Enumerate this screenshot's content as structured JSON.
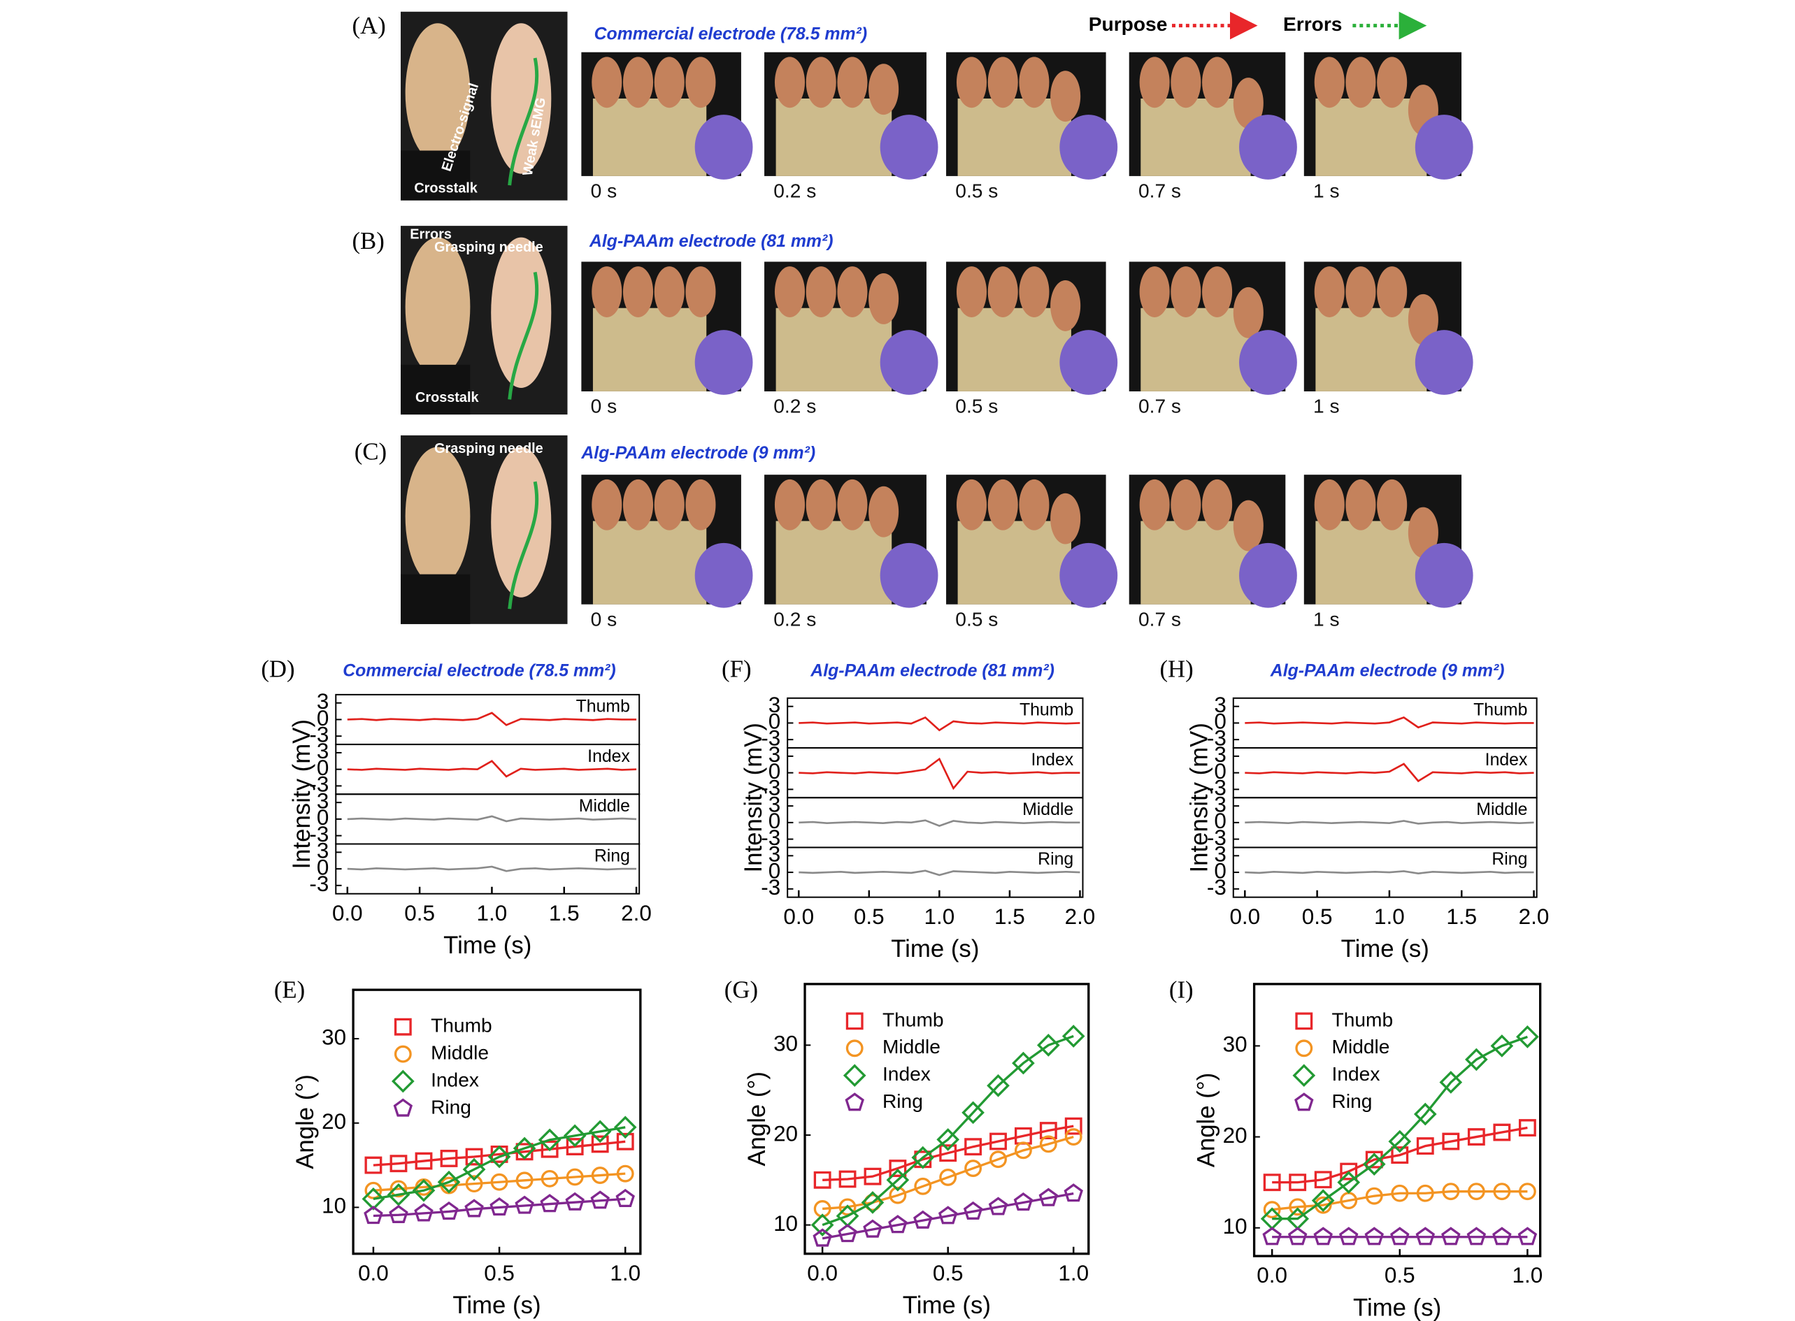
{
  "figure_top": {
    "legend": {
      "purpose": "Purpose",
      "errors": "Errors"
    },
    "rows": [
      {
        "label": "(A)",
        "title": "Commercial electrode (78.5 mm²)",
        "photo_labels": [
          "Electro-signal",
          "Weak sEMG",
          "Crosstalk"
        ],
        "times": [
          "0 s",
          "0.2 s",
          "0.5 s",
          "0.7 s",
          "1 s"
        ]
      },
      {
        "label": "(B)",
        "title": "Alg-PAAm electrode (81 mm²)",
        "photo_labels": [
          "Errors",
          "Grasping needle",
          "Crosstalk"
        ],
        "times": [
          "0 s",
          "0.2 s",
          "0.5 s",
          "0.7 s",
          "1 s"
        ]
      },
      {
        "label": "(C)",
        "title": "Alg-PAAm electrode (9 mm²)",
        "photo_labels": [
          "Grasping needle"
        ],
        "times": [
          "0 s",
          "0.2 s",
          "0.5 s",
          "0.7 s",
          "1 s"
        ]
      }
    ]
  },
  "chart_data": [
    {
      "label": "(D)",
      "type": "line",
      "subplots": true,
      "title": "Commercial electrode (78.5 mm²)",
      "xlabel": "Time (s)",
      "ylabel": "Intensity (mV)",
      "x": [
        0,
        0.1,
        0.2,
        0.3,
        0.4,
        0.5,
        0.6,
        0.7,
        0.8,
        0.9,
        1.0,
        1.1,
        1.2,
        1.3,
        1.4,
        1.5,
        1.6,
        1.7,
        1.8,
        1.9,
        2.0
      ],
      "xlim": [
        -0.08,
        2.02
      ],
      "xticks": [
        {
          "value": 0,
          "label": "0.0"
        },
        0.5,
        {
          "value": 1,
          "label": "1.0"
        },
        1.5,
        {
          "value": 2,
          "label": "2.0"
        }
      ],
      "ylim": [
        -4.5,
        4.5
      ],
      "yticks": [
        3,
        0,
        -3
      ],
      "series": [
        {
          "name": "Thumb",
          "color": "#e0201b",
          "values": [
            0,
            0.1,
            -0.1,
            0.1,
            0,
            -0.1,
            0.1,
            0,
            -0.1,
            0.1,
            1.2,
            -1.0,
            0.1,
            0,
            -0.1,
            0.1,
            0,
            -0.1,
            0.1,
            0,
            0
          ]
        },
        {
          "name": "Index",
          "color": "#e0201b",
          "values": [
            0,
            -0.1,
            0.1,
            0,
            -0.1,
            0.1,
            0,
            -0.1,
            0.1,
            0,
            1.5,
            -1.3,
            0.1,
            -0.1,
            0,
            0.1,
            -0.1,
            0,
            0.1,
            -0.1,
            0
          ]
        },
        {
          "name": "Middle",
          "color": "#8a8a8a",
          "values": [
            0,
            0.1,
            0,
            -0.1,
            0.1,
            0,
            -0.1,
            0.1,
            0,
            -0.1,
            0.5,
            -0.4,
            0.1,
            0,
            -0.1,
            0,
            0.1,
            -0.1,
            0,
            0.1,
            0
          ]
        },
        {
          "name": "Ring",
          "color": "#8a8a8a",
          "values": [
            0,
            -0.1,
            0.1,
            0,
            -0.1,
            0,
            0.1,
            -0.1,
            0,
            0.1,
            0.4,
            -0.4,
            0,
            0.1,
            -0.1,
            0,
            0.1,
            0,
            -0.1,
            0,
            0
          ]
        }
      ]
    },
    {
      "label": "(E)",
      "type": "line",
      "xlabel": "Time (s)",
      "ylabel": "Angle (°)",
      "legend": "upper left",
      "x": [
        0,
        0.1,
        0.2,
        0.3,
        0.4,
        0.5,
        0.6,
        0.7,
        0.8,
        0.9,
        1.0
      ],
      "xlim": [
        -0.08,
        1.06
      ],
      "xticks": [
        {
          "value": 0,
          "label": "0.0"
        },
        0.5,
        {
          "value": 1,
          "label": "1.0"
        }
      ],
      "ylim": [
        4.5,
        35.8
      ],
      "yticks": [
        10,
        20,
        30
      ],
      "series": [
        {
          "name": "Thumb",
          "color": "#e8262a",
          "marker": "square",
          "values": [
            15,
            15.2,
            15.5,
            15.8,
            16,
            16.3,
            16.6,
            16.9,
            17.2,
            17.5,
            17.8
          ]
        },
        {
          "name": "Middle",
          "color": "#f39422",
          "marker": "circle",
          "values": [
            12,
            12.2,
            12.4,
            12.6,
            12.8,
            13,
            13.2,
            13.4,
            13.6,
            13.8,
            14
          ]
        },
        {
          "name": "Index",
          "color": "#229a33",
          "marker": "diamond",
          "values": [
            11,
            11.5,
            12,
            13,
            14.5,
            16,
            17,
            18,
            18.5,
            19,
            19.5
          ]
        },
        {
          "name": "Ring",
          "color": "#80278f",
          "marker": "pentagon",
          "values": [
            9,
            9.1,
            9.3,
            9.5,
            9.8,
            10,
            10.2,
            10.4,
            10.6,
            10.8,
            11
          ]
        }
      ]
    },
    {
      "label": "(F)",
      "type": "line",
      "subplots": true,
      "title": "Alg-PAAm electrode (81 mm²)",
      "xlabel": "Time (s)",
      "ylabel": "Intensity (mV)",
      "x": [
        0,
        0.1,
        0.2,
        0.3,
        0.4,
        0.5,
        0.6,
        0.7,
        0.8,
        0.9,
        1.0,
        1.1,
        1.2,
        1.3,
        1.4,
        1.5,
        1.6,
        1.7,
        1.8,
        1.9,
        2.0
      ],
      "xlim": [
        -0.08,
        2.02
      ],
      "xticks": [
        {
          "value": 0,
          "label": "0.0"
        },
        0.5,
        {
          "value": 1,
          "label": "1.0"
        },
        1.5,
        {
          "value": 2,
          "label": "2.0"
        }
      ],
      "ylim": [
        -4.5,
        4.5
      ],
      "yticks": [
        3,
        0,
        -3
      ],
      "series": [
        {
          "name": "Thumb",
          "color": "#e0201b",
          "values": [
            0,
            0.1,
            -0.1,
            0,
            0.1,
            -0.1,
            0,
            0.1,
            -0.1,
            1.0,
            -1.3,
            0.3,
            0,
            -0.1,
            0.1,
            0,
            -0.1,
            0.1,
            0,
            -0.1,
            0
          ]
        },
        {
          "name": "Index",
          "color": "#e0201b",
          "values": [
            0,
            -0.1,
            0.1,
            0,
            -0.1,
            0.1,
            0,
            -0.1,
            0.2,
            0.6,
            2.5,
            -2.8,
            0.2,
            0,
            0.1,
            -0.1,
            0,
            0.1,
            -0.1,
            0,
            0
          ]
        },
        {
          "name": "Middle",
          "color": "#8a8a8a",
          "values": [
            0,
            0.1,
            -0.1,
            0,
            0.1,
            0,
            -0.1,
            0.1,
            0,
            0.4,
            -0.6,
            0.3,
            0,
            -0.1,
            0.1,
            0,
            -0.1,
            0,
            0.1,
            0,
            0
          ]
        },
        {
          "name": "Ring",
          "color": "#8a8a8a",
          "values": [
            0,
            -0.1,
            0,
            0.1,
            -0.1,
            0,
            0.1,
            0,
            -0.1,
            0.3,
            -0.5,
            0.2,
            0.1,
            0,
            -0.1,
            0.1,
            0,
            -0.1,
            0,
            0.1,
            0
          ]
        }
      ]
    },
    {
      "label": "(G)",
      "type": "line",
      "xlabel": "Time (s)",
      "ylabel": "Angle (°)",
      "legend": "upper left",
      "x": [
        0,
        0.1,
        0.2,
        0.3,
        0.4,
        0.5,
        0.6,
        0.7,
        0.8,
        0.9,
        1.0
      ],
      "xlim": [
        -0.07,
        1.06
      ],
      "xticks": [
        {
          "value": 0,
          "label": "0.0"
        },
        0.5,
        {
          "value": 1,
          "label": "1.0"
        }
      ],
      "ylim": [
        6.8,
        36.8
      ],
      "yticks": [
        10,
        20,
        30
      ],
      "series": [
        {
          "name": "Thumb",
          "color": "#e8262a",
          "marker": "square",
          "values": [
            15,
            15.1,
            15.4,
            16.3,
            17.3,
            18,
            18.7,
            19.3,
            19.9,
            20.5,
            21
          ]
        },
        {
          "name": "Middle",
          "color": "#f39422",
          "marker": "circle",
          "values": [
            11.8,
            12,
            12.5,
            13.3,
            14.3,
            15.3,
            16.3,
            17.3,
            18.3,
            19,
            19.8
          ]
        },
        {
          "name": "Index",
          "color": "#229a33",
          "marker": "diamond",
          "values": [
            10,
            11,
            12.5,
            15,
            17.5,
            19.5,
            22.5,
            25.5,
            28,
            30,
            31
          ]
        },
        {
          "name": "Ring",
          "color": "#80278f",
          "marker": "pentagon",
          "values": [
            8.5,
            9,
            9.5,
            10,
            10.5,
            11,
            11.5,
            12,
            12.5,
            13,
            13.5
          ]
        }
      ]
    },
    {
      "label": "(H)",
      "type": "line",
      "subplots": true,
      "title": "Alg-PAAm electrode (9 mm²)",
      "xlabel": "Time (s)",
      "ylabel": "Intensity (mV)",
      "x": [
        0,
        0.1,
        0.2,
        0.3,
        0.4,
        0.5,
        0.6,
        0.7,
        0.8,
        0.9,
        1.0,
        1.1,
        1.2,
        1.3,
        1.4,
        1.5,
        1.6,
        1.7,
        1.8,
        1.9,
        2.0
      ],
      "xlim": [
        -0.08,
        2.02
      ],
      "xticks": [
        {
          "value": 0,
          "label": "0.0"
        },
        0.5,
        {
          "value": 1,
          "label": "1.0"
        },
        1.5,
        {
          "value": 2,
          "label": "2.0"
        }
      ],
      "ylim": [
        -4.5,
        4.5
      ],
      "yticks": [
        3,
        0,
        -3
      ],
      "series": [
        {
          "name": "Thumb",
          "color": "#e0201b",
          "values": [
            0,
            0.1,
            -0.1,
            0,
            0.1,
            0,
            -0.1,
            0.1,
            0,
            -0.1,
            0.1,
            1.0,
            -0.8,
            0.1,
            0,
            -0.1,
            0.1,
            0,
            -0.1,
            0,
            0
          ]
        },
        {
          "name": "Index",
          "color": "#e0201b",
          "values": [
            0,
            -0.1,
            0.1,
            0,
            -0.1,
            0.1,
            0,
            -0.1,
            0.1,
            0,
            0.2,
            1.6,
            -1.5,
            0.1,
            0,
            -0.1,
            0.1,
            0,
            0.1,
            -0.1,
            0
          ]
        },
        {
          "name": "Middle",
          "color": "#8a8a8a",
          "values": [
            0,
            0.1,
            0,
            -0.1,
            0.1,
            0,
            -0.1,
            0,
            0.1,
            0,
            -0.1,
            0.3,
            -0.2,
            0,
            0.1,
            -0.1,
            0,
            0.1,
            0,
            -0.1,
            0
          ]
        },
        {
          "name": "Ring",
          "color": "#8a8a8a",
          "values": [
            0,
            -0.1,
            0.1,
            0,
            -0.1,
            0.1,
            0,
            -0.1,
            0,
            0.1,
            0,
            0.2,
            -0.2,
            0.1,
            0,
            -0.1,
            0,
            0.1,
            -0.1,
            0,
            0
          ]
        }
      ]
    },
    {
      "label": "(I)",
      "type": "line",
      "xlabel": "Time (s)",
      "ylabel": "Angle (°)",
      "legend": "upper left",
      "x": [
        0,
        0.1,
        0.2,
        0.3,
        0.4,
        0.5,
        0.6,
        0.7,
        0.8,
        0.9,
        1.0
      ],
      "xlim": [
        -0.07,
        1.05
      ],
      "xticks": [
        {
          "value": 0,
          "label": "0.0"
        },
        0.5,
        {
          "value": 1,
          "label": "1.0"
        }
      ],
      "ylim": [
        6.9,
        36.8
      ],
      "yticks": [
        10,
        20,
        30
      ],
      "series": [
        {
          "name": "Thumb",
          "color": "#e8262a",
          "marker": "square",
          "values": [
            15,
            15,
            15.3,
            16.2,
            17.5,
            18,
            19,
            19.5,
            20,
            20.5,
            21
          ]
        },
        {
          "name": "Middle",
          "color": "#f39422",
          "marker": "circle",
          "values": [
            12,
            12.3,
            12.5,
            13,
            13.5,
            13.8,
            13.8,
            14,
            14,
            14,
            14
          ]
        },
        {
          "name": "Index",
          "color": "#229a33",
          "marker": "diamond",
          "values": [
            11,
            11,
            13,
            15,
            17,
            19.5,
            22.5,
            26,
            28.5,
            30,
            31
          ]
        },
        {
          "name": "Ring",
          "color": "#80278f",
          "marker": "pentagon",
          "values": [
            9,
            9,
            9,
            9,
            9,
            9,
            9,
            9,
            9,
            9,
            9
          ]
        }
      ]
    }
  ]
}
